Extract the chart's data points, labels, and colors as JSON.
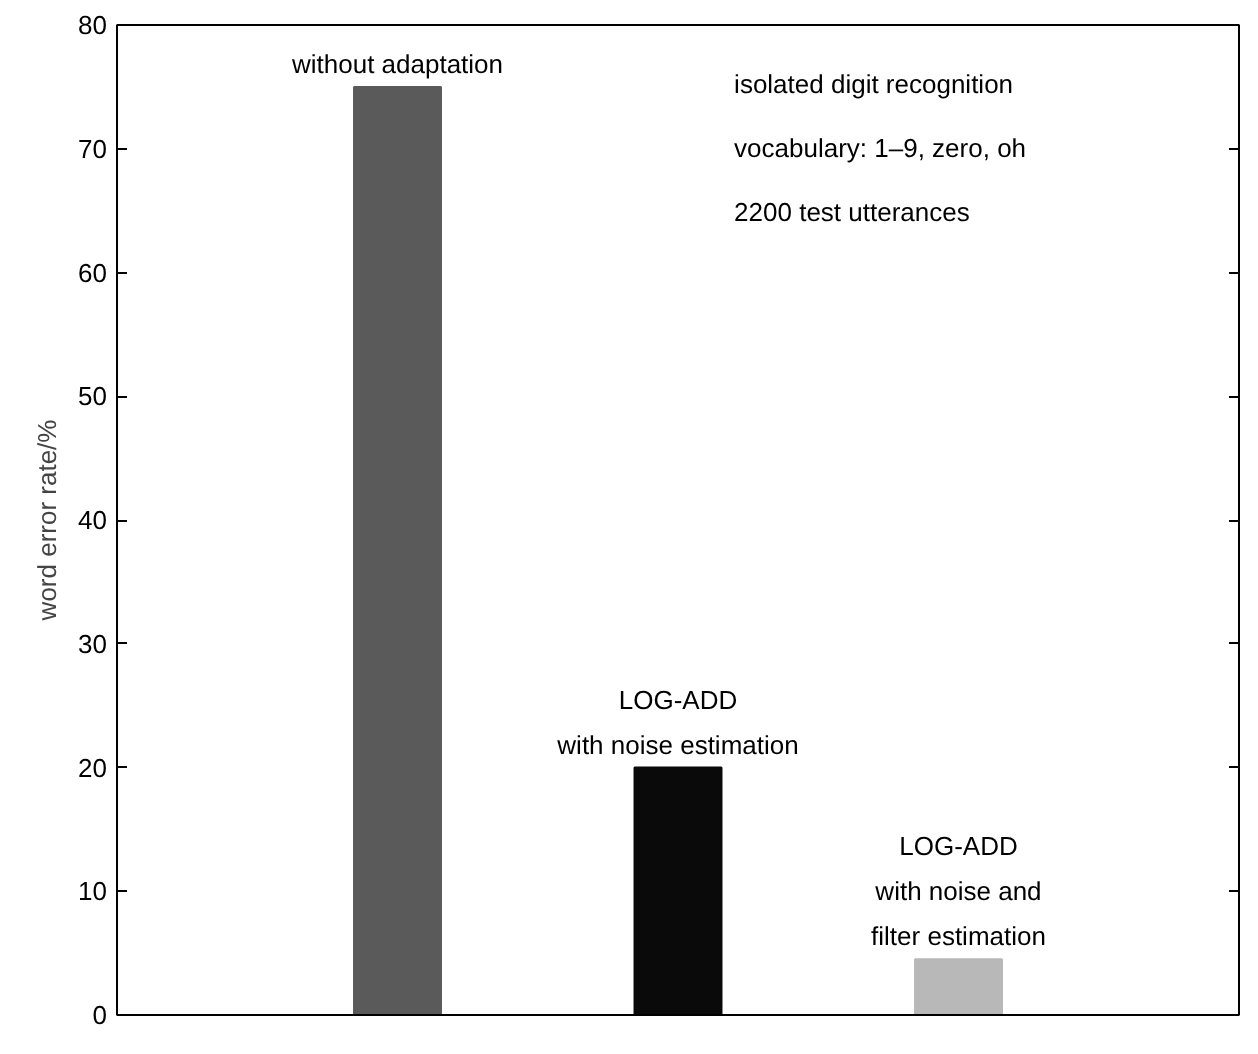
{
  "chart_data": {
    "type": "bar",
    "ylabel": "word error rate/%",
    "categories": [
      null,
      null,
      null
    ],
    "values": [
      75,
      20,
      4.5
    ],
    "colors": [
      "#5a5a5a",
      "#0a0a0a",
      "#b8b8b8"
    ],
    "ylim": [
      0,
      80
    ],
    "yticks": [
      0,
      10,
      20,
      30,
      40,
      50,
      60,
      70,
      80
    ],
    "grid": false,
    "tick_labels": "y",
    "annotations": [
      {
        "text": "without adaptation",
        "y": 75
      },
      {
        "text": "LOG-ADD\nwith noise estimation",
        "y": 20
      },
      {
        "text": "LOG-ADD\nwith noise and\nfilter estimation",
        "y": 4.5
      },
      "isolated digit recognition",
      "vocabulary: 1–9, zero, oh",
      "2200 test utterances"
    ]
  }
}
